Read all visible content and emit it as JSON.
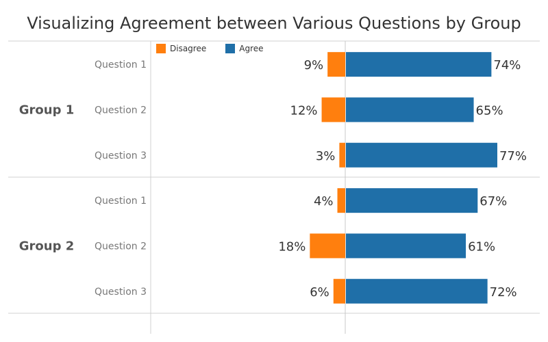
{
  "chart_data": {
    "type": "bar",
    "orientation": "horizontal-diverging",
    "title": "Visualizing Agreement between Various Questions by Group",
    "legend": {
      "placement": "top-left"
    },
    "groups": [
      {
        "name": "Group 1",
        "questions": [
          {
            "label": "Question 1",
            "disagree": 9,
            "agree": 74
          },
          {
            "label": "Question 2",
            "disagree": 12,
            "agree": 65
          },
          {
            "label": "Question 3",
            "disagree": 3,
            "agree": 77
          }
        ]
      },
      {
        "name": "Group 2",
        "questions": [
          {
            "label": "Question 1",
            "disagree": 4,
            "agree": 67
          },
          {
            "label": "Question 2",
            "disagree": 18,
            "agree": 61
          },
          {
            "label": "Question 3",
            "disagree": 6,
            "agree": 72
          }
        ]
      }
    ],
    "series": [
      {
        "name": "Disagree",
        "key": "disagree",
        "color": "#ff7f0e"
      },
      {
        "name": "Agree",
        "key": "agree",
        "color": "#1f6fa8"
      }
    ],
    "value_suffix": "%"
  }
}
